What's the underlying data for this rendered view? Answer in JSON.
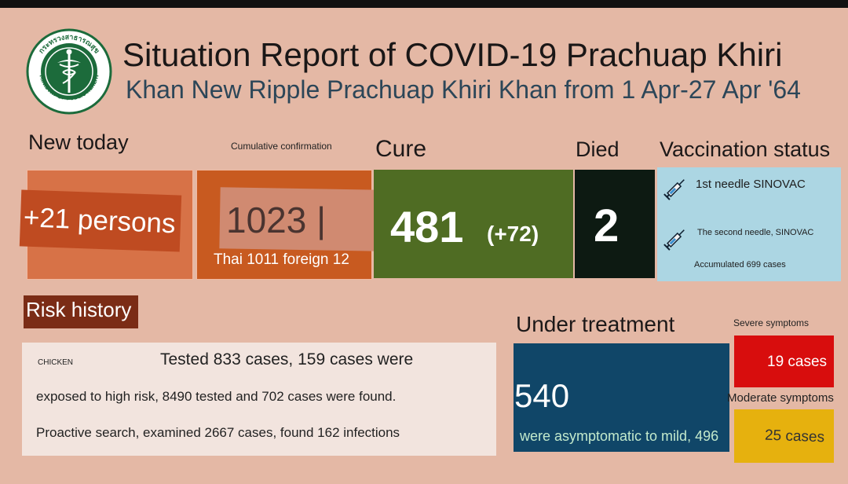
{
  "colors": {
    "background": "#e4b8a5",
    "new_today": "#d77247",
    "cumulative": "#c85a20",
    "cure": "#4f6c23",
    "died": "#0d1a12",
    "vaccination": "#acd6e3",
    "risk_label": "#7b2c16",
    "under_treatment": "#104668",
    "severe": "#d80d0d",
    "moderate": "#e6b10e"
  },
  "logo": {
    "icon": "ministry-of-public-health-seal-icon",
    "top_text": "กระทรวงสาธารณสุข",
    "bottom_text": "MINISTRY OF PUBLIC HEALTH"
  },
  "header": {
    "title_line1": "Situation Report of COVID-19 Prachuap Khiri",
    "title_line2": "Khan New Ripple Prachuap Khiri Khan from 1 Apr-27 Apr '64"
  },
  "new_today": {
    "label": "New today",
    "value": "+21 persons"
  },
  "cumulative": {
    "label": "Cumulative confirmation",
    "value": "1023 |",
    "breakdown": "Thai 1011 foreign 12"
  },
  "cure": {
    "label": "Cure",
    "value": "481",
    "delta": "(+72)"
  },
  "died": {
    "label": "Died",
    "value": "2"
  },
  "vaccination": {
    "label": "Vaccination status",
    "icon": "syringe-icon",
    "line1": "1st needle SINOVAC",
    "line2": "The second needle, SINOVAC",
    "line3": "Accumulated 699 cases"
  },
  "risk": {
    "label": "Risk history",
    "tag": "CHICKEN",
    "line1": "Tested 833 cases, 159 cases were",
    "line2": "exposed to high risk, 8490 tested and 702 cases were found.",
    "line3": "Proactive search, examined 2667 cases, found 162 infections"
  },
  "under_treatment": {
    "label": "Under treatment",
    "value": "540",
    "sub": "were asymptomatic to mild, 496"
  },
  "severe": {
    "label": "Severe symptoms",
    "value": "19 cases"
  },
  "moderate": {
    "label": "Moderate symptoms",
    "value": "25 cases"
  }
}
